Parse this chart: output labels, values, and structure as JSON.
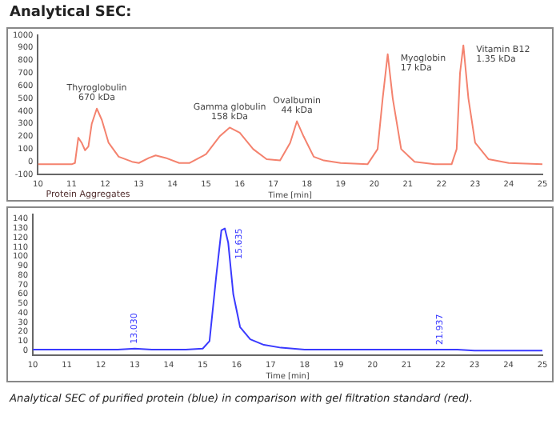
{
  "chart_data": [
    {
      "type": "line",
      "title": "Analytical SEC:",
      "xlabel": "Time [min]",
      "xlim": [
        10,
        25
      ],
      "xticks": [
        10,
        11,
        12,
        13,
        14,
        15,
        16,
        17,
        18,
        19,
        20,
        21,
        22,
        23,
        24,
        25
      ],
      "ylim": [
        -100,
        1000
      ],
      "yticks": [
        -100,
        0,
        100,
        200,
        300,
        400,
        500,
        600,
        700,
        800,
        900,
        1000
      ],
      "grid": false,
      "legend": false,
      "marker": "none",
      "line_style": "solid",
      "series": [
        {
          "color": "#f4826e",
          "x": [
            10,
            11,
            11.1,
            11.2,
            11.3,
            11.4,
            11.5,
            11.6,
            11.75,
            11.9,
            12.1,
            12.4,
            12.8,
            13.0,
            13.3,
            13.5,
            13.8,
            14.2,
            14.5,
            15.0,
            15.4,
            15.7,
            16.0,
            16.4,
            16.8,
            17.2,
            17.5,
            17.7,
            17.9,
            18.2,
            18.5,
            19,
            19.8,
            20.1,
            20.25,
            20.4,
            20.55,
            20.8,
            21.2,
            21.8,
            22.3,
            22.45,
            22.55,
            22.65,
            22.8,
            23.0,
            23.4,
            24,
            25
          ],
          "values": [
            -20,
            -20,
            -10,
            190,
            150,
            90,
            120,
            300,
            420,
            330,
            150,
            40,
            0,
            -10,
            30,
            50,
            30,
            -10,
            -10,
            60,
            200,
            270,
            230,
            100,
            20,
            10,
            150,
            320,
            200,
            40,
            10,
            -10,
            -20,
            100,
            500,
            850,
            500,
            100,
            0,
            -20,
            -20,
            100,
            700,
            920,
            500,
            150,
            20,
            -10,
            -20
          ]
        }
      ],
      "annotations": [
        {
          "text": "Thyroglobulin\n670 kDa",
          "x": 11.75,
          "y": 420
        },
        {
          "text": "Gamma globulin\n158 kDa",
          "x": 15.7,
          "y": 270
        },
        {
          "text": "Ovalbumin\n44 kDa",
          "x": 17.7,
          "y": 320
        },
        {
          "text": "Myoglobin\n17 kDa",
          "x": 20.4,
          "y": 850
        },
        {
          "text": "Vitamin B12\n1.35 kDa",
          "x": 22.65,
          "y": 920
        },
        "Protein Aggregates"
      ]
    },
    {
      "type": "line",
      "xlabel": "Time [min]",
      "xlim": [
        10,
        25
      ],
      "xticks": [
        10,
        11,
        12,
        13,
        14,
        15,
        16,
        17,
        18,
        19,
        20,
        21,
        22,
        23,
        24,
        25
      ],
      "ylim": [
        -5,
        145
      ],
      "yticks": [
        0,
        10,
        20,
        30,
        40,
        50,
        60,
        70,
        80,
        90,
        100,
        110,
        120,
        130,
        140
      ],
      "grid": false,
      "legend": false,
      "marker": "none",
      "line_style": "solid",
      "series": [
        {
          "color": "#3a3aff",
          "x": [
            10,
            12.5,
            13,
            13.5,
            14.5,
            15.0,
            15.2,
            15.4,
            15.55,
            15.65,
            15.75,
            15.9,
            16.1,
            16.4,
            16.8,
            17.3,
            18,
            21,
            22,
            22.5,
            23,
            25
          ],
          "values": [
            1,
            1,
            2,
            1,
            1,
            2,
            10,
            80,
            128,
            130,
            115,
            60,
            25,
            12,
            6,
            3,
            1,
            1,
            1,
            1,
            0,
            0
          ]
        }
      ],
      "annotations": [
        {
          "text": "13.030",
          "x": 13,
          "y": 2
        },
        {
          "text": "15.635",
          "x": 15.65,
          "y": 130
        },
        {
          "text": "21.937",
          "x": 22,
          "y": 1
        },
        "Analytical SEC of purified protein (blue) in comparison with gel filtration standard (red)."
      ]
    }
  ]
}
